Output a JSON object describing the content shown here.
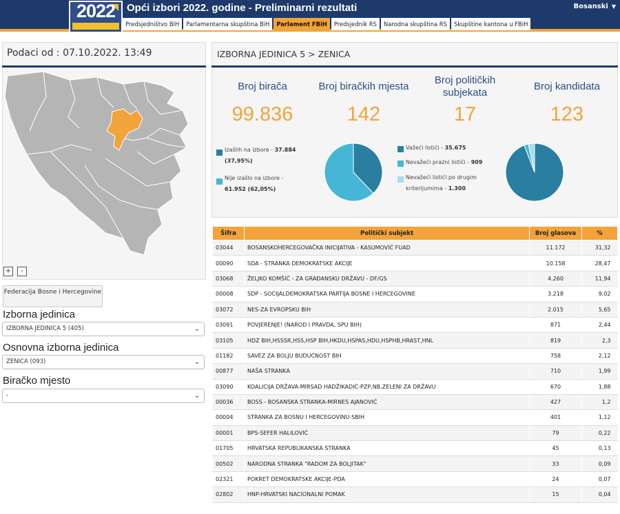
{
  "header": {
    "title": "Opći izbori 2022. godine - Preliminarni rezultati",
    "language": "Bosanski",
    "logo_text": "2022"
  },
  "nav_tabs": [
    {
      "label": "Predsjedništvo BiH",
      "active": false
    },
    {
      "label": "Parlamentarna skupština BiH",
      "active": false
    },
    {
      "label": "Parlament FBiH",
      "active": true
    },
    {
      "label": "Predsjednik RS",
      "active": false
    },
    {
      "label": "Narodna skupština RS",
      "active": false
    },
    {
      "label": "Skupštine kantona u FBiH",
      "active": false
    }
  ],
  "left_panel": {
    "data_from": "Podaci od : 07.10.2022. 13:49",
    "zoom_in": "+",
    "zoom_out": "-",
    "federation_button": "Federacija Bosne i Hercegovine",
    "filters": [
      {
        "label": "Izborna jedinica",
        "value": "IZBORNA JEDINICA 5 (405)"
      },
      {
        "label": "Osnovna izborna jedinica",
        "value": "ZENICA (093)"
      },
      {
        "label": "Biračko mjesto",
        "value": "-"
      }
    ],
    "map_highlight_color": "#f2a33a",
    "map_base_color": "#b5b5b5"
  },
  "summary": {
    "breadcrumb": "IZBORNA JEDINICA 5 > ZENICA",
    "stats": [
      {
        "label": "Broj birača",
        "value": "99.836"
      },
      {
        "label": "Broj biračkih mjesta",
        "value": "142"
      },
      {
        "label": "Broj političkih subjekata",
        "value": "17"
      },
      {
        "label": "Broj kandidata",
        "value": "123"
      }
    ]
  },
  "turnout": {
    "legend": [
      {
        "label": "Izašlih na izbore - ",
        "value": "37.884",
        "extra": "(37,95%)",
        "color": "#2a7fa0",
        "share": 37.95
      },
      {
        "label": "Nije izašlo na izbore - ",
        "value": "61.952 (62,05%)",
        "extra": "",
        "color": "#45b6d6",
        "share": 62.05
      }
    ]
  },
  "ballots": {
    "legend": [
      {
        "label": "Važeći listići - ",
        "value": "35.675",
        "color": "#2a7fa0",
        "count": 35675
      },
      {
        "label": "Nevažeći prazni listići - ",
        "value": "909",
        "color": "#45b6d6",
        "count": 909
      },
      {
        "label": "Nevažeći listići po drugim kriterijumima - ",
        "value": "1.300",
        "color": "#a8dcea",
        "count": 1300
      }
    ]
  },
  "results": {
    "columns": [
      "Šifra",
      "Politički subjekt",
      "Broj glasova",
      "%"
    ],
    "rows": [
      {
        "code": "03044",
        "name": "BOSANSKOHERCEGOVAČKA INICIJATIVA - KASUMOVIĆ FUAD",
        "votes": "11.172",
        "pct": "31,32"
      },
      {
        "code": "00090",
        "name": "SDA - STRANKA DEMOKRATSKE AKCIJE",
        "votes": "10.158",
        "pct": "28,47"
      },
      {
        "code": "03068",
        "name": "ŽELJKO KOMŠIĆ - ZA GRAĐANSKU DRŽAVU - DF/GS",
        "votes": "4.260",
        "pct": "11,94"
      },
      {
        "code": "00008",
        "name": "SDP - SOCIJALDEMOKRATSKA PARTIJA BOSNE I HERCEGOVINE",
        "votes": "3.218",
        "pct": "9,02"
      },
      {
        "code": "03072",
        "name": "NES-ZA EVROPSKU BIH",
        "votes": "2.015",
        "pct": "5,65"
      },
      {
        "code": "03091",
        "name": "POVJERENJE! (NAROD I PRAVDA, SPU BIH)",
        "votes": "871",
        "pct": "2,44"
      },
      {
        "code": "03105",
        "name": "HDZ BIH,HSSSR,HSS,HSP BIH,HKDU,HSPAS,HDU,HSPHB,HRAST,HNL",
        "votes": "819",
        "pct": "2,3"
      },
      {
        "code": "01182",
        "name": "SAVEZ ZA BOLJU BUDUĆNOST BIH",
        "votes": "758",
        "pct": "2,12"
      },
      {
        "code": "00877",
        "name": "NAŠA STRANKA",
        "votes": "710",
        "pct": "1,99"
      },
      {
        "code": "03090",
        "name": "KOALICIJA DRŽAVA-MIRSAD HADŽIKADIĆ-PZP,NB,ZELENI ZA DRŽAVU",
        "votes": "670",
        "pct": "1,88"
      },
      {
        "code": "00036",
        "name": "BOSS - BOSANSKA STRANKA-MIRNES AJANOVIĆ",
        "votes": "427",
        "pct": "1,2"
      },
      {
        "code": "00004",
        "name": "STRANKA ZA BOSNU I HERCEGOVINU-SBIH",
        "votes": "401",
        "pct": "1,12"
      },
      {
        "code": "00001",
        "name": "BPS-SEFER HALILOVIĆ",
        "votes": "79",
        "pct": "0,22"
      },
      {
        "code": "01705",
        "name": "HRVATSKA REPUBLIKANSKA STRANKA",
        "votes": "45",
        "pct": "0,13"
      },
      {
        "code": "00502",
        "name": "NARODNA STRANKA \"RADOM ZA BOLJITAK\"",
        "votes": "33",
        "pct": "0,09"
      },
      {
        "code": "02321",
        "name": "POKRET DEMOKRATSKE AKCIJE-PDA",
        "votes": "24",
        "pct": "0,07"
      },
      {
        "code": "02802",
        "name": "HNP-HRVATSKI NACIONALNI POMAK",
        "votes": "15",
        "pct": "0,04"
      }
    ]
  }
}
